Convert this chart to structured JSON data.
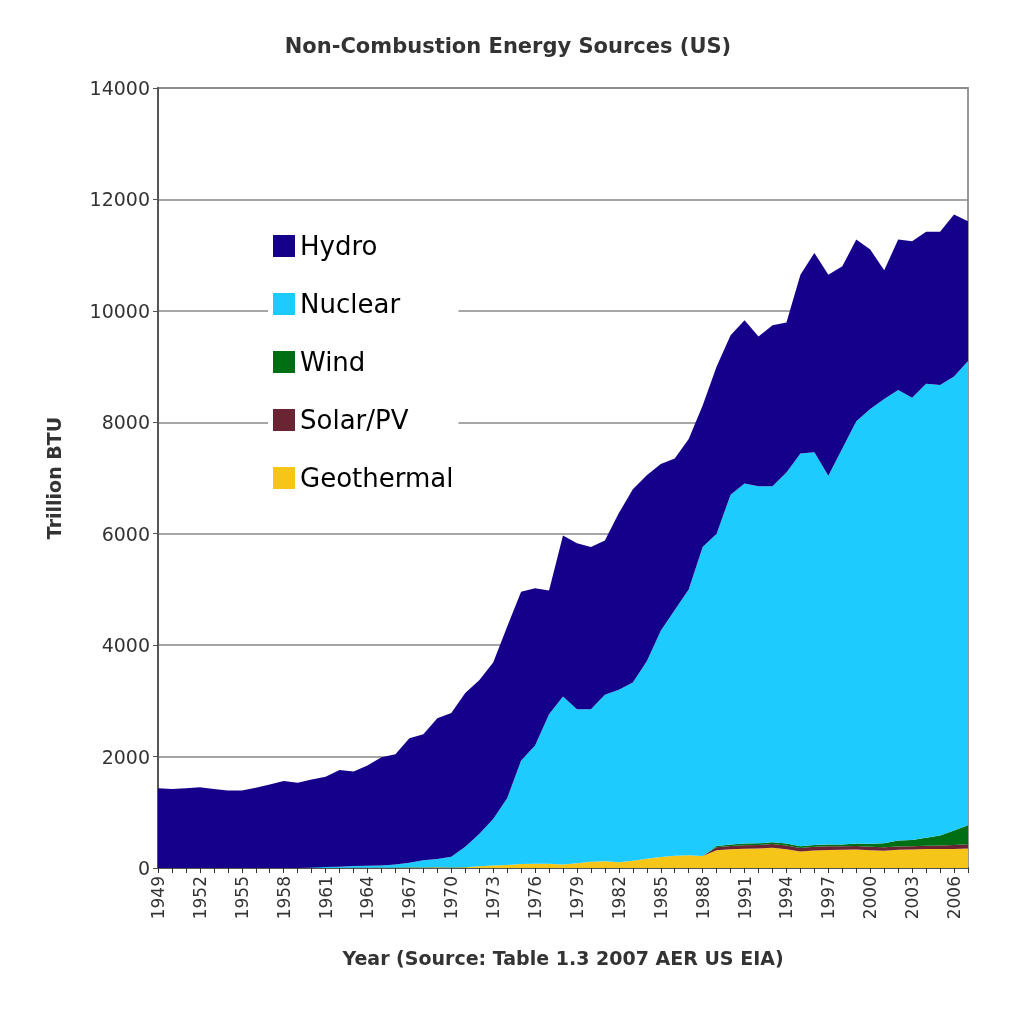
{
  "chart_data": {
    "type": "area",
    "title": "Non-Combustion Energy Sources (US)",
    "xlabel": "Year (Source: Table 1.3 2007 AER US EIA)",
    "ylabel": "Trillion BTU",
    "stacked": true,
    "grid": "y",
    "legend": "top left",
    "x": [
      1949,
      1950,
      1951,
      1952,
      1953,
      1954,
      1955,
      1956,
      1957,
      1958,
      1959,
      1960,
      1961,
      1962,
      1963,
      1964,
      1965,
      1966,
      1967,
      1968,
      1969,
      1970,
      1971,
      1972,
      1973,
      1974,
      1975,
      1976,
      1977,
      1978,
      1979,
      1980,
      1981,
      1982,
      1983,
      1984,
      1985,
      1986,
      1987,
      1988,
      1989,
      1990,
      1991,
      1992,
      1993,
      1994,
      1995,
      1996,
      1997,
      1998,
      1999,
      2000,
      2001,
      2002,
      2003,
      2004,
      2005,
      2006,
      2007
    ],
    "xlim": [
      1949,
      2007
    ],
    "xticks": [
      1949,
      {
        "value": 1950,
        "label": null
      },
      {
        "value": 1951,
        "label": null
      },
      1952,
      {
        "value": 1953,
        "label": null
      },
      {
        "value": 1954,
        "label": null
      },
      1955,
      {
        "value": 1956,
        "label": null
      },
      {
        "value": 1957,
        "label": null
      },
      1958,
      {
        "value": 1959,
        "label": null
      },
      {
        "value": 1960,
        "label": null
      },
      1961,
      {
        "value": 1962,
        "label": null
      },
      {
        "value": 1963,
        "label": null
      },
      1964,
      {
        "value": 1965,
        "label": null
      },
      {
        "value": 1966,
        "label": null
      },
      1967,
      {
        "value": 1968,
        "label": null
      },
      {
        "value": 1969,
        "label": null
      },
      1970,
      {
        "value": 1971,
        "label": null
      },
      {
        "value": 1972,
        "label": null
      },
      1973,
      {
        "value": 1974,
        "label": null
      },
      {
        "value": 1975,
        "label": null
      },
      1976,
      {
        "value": 1977,
        "label": null
      },
      {
        "value": 1978,
        "label": null
      },
      1979,
      {
        "value": 1980,
        "label": null
      },
      {
        "value": 1981,
        "label": null
      },
      1982,
      {
        "value": 1983,
        "label": null
      },
      {
        "value": 1984,
        "label": null
      },
      1985,
      {
        "value": 1986,
        "label": null
      },
      {
        "value": 1987,
        "label": null
      },
      1988,
      {
        "value": 1989,
        "label": null
      },
      {
        "value": 1990,
        "label": null
      },
      1991,
      {
        "value": 1992,
        "label": null
      },
      {
        "value": 1993,
        "label": null
      },
      1994,
      {
        "value": 1995,
        "label": null
      },
      {
        "value": 1996,
        "label": null
      },
      1997,
      {
        "value": 1998,
        "label": null
      },
      {
        "value": 1999,
        "label": null
      },
      2000,
      {
        "value": 2001,
        "label": null
      },
      {
        "value": 2002,
        "label": null
      },
      2003,
      {
        "value": 2004,
        "label": null
      },
      {
        "value": 2005,
        "label": null
      },
      2006,
      {
        "value": 2007,
        "label": null
      }
    ],
    "ylim": [
      0,
      14000
    ],
    "yticks": [
      0,
      2000,
      4000,
      6000,
      8000,
      10000,
      12000,
      14000
    ],
    "series": [
      {
        "name": "Geothermal",
        "color": "#f5c518",
        "values": [
          0,
          0,
          0,
          0,
          0,
          0,
          0,
          0,
          0,
          0,
          0,
          1,
          2,
          2,
          4,
          5,
          4,
          4,
          7,
          9,
          13,
          11,
          12,
          31,
          43,
          53,
          70,
          78,
          77,
          64,
          84,
          110,
          123,
          105,
          129,
          165,
          198,
          219,
          229,
          217,
          317,
          336,
          346,
          349,
          364,
          338,
          294,
          316,
          325,
          328,
          331,
          317,
          311,
          328,
          331,
          341,
          343,
          343,
          349
        ]
      },
      {
        "name": "Solar/PV",
        "color": "#6b2433",
        "values": [
          0,
          0,
          0,
          0,
          0,
          0,
          0,
          0,
          0,
          0,
          0,
          0,
          0,
          0,
          0,
          0,
          0,
          0,
          0,
          0,
          0,
          0,
          0,
          0,
          0,
          0,
          0,
          0,
          0,
          0,
          0,
          0,
          0,
          0,
          0,
          0,
          0,
          0,
          0,
          0,
          55,
          59,
          62,
          64,
          66,
          65,
          65,
          65,
          64,
          63,
          63,
          63,
          62,
          60,
          58,
          60,
          62,
          68,
          76
        ]
      },
      {
        "name": "Wind",
        "color": "#006e12",
        "values": [
          0,
          0,
          0,
          0,
          0,
          0,
          0,
          0,
          0,
          0,
          0,
          0,
          0,
          0,
          0,
          0,
          0,
          0,
          0,
          0,
          0,
          0,
          0,
          0,
          0,
          0,
          0,
          0,
          0,
          0,
          0,
          0,
          0,
          0,
          0,
          0,
          0,
          0,
          0,
          0,
          22,
          29,
          31,
          30,
          31,
          36,
          33,
          33,
          34,
          31,
          46,
          57,
          70,
          105,
          115,
          142,
          178,
          264,
          341
        ]
      },
      {
        "name": "Nuclear",
        "color": "#1ecbff",
        "values": [
          0,
          0,
          0,
          0,
          0,
          0,
          0,
          0,
          0,
          0,
          2,
          6,
          15,
          22,
          31,
          35,
          43,
          60,
          88,
          131,
          147,
          189,
          368,
          579,
          837,
          1197,
          1860,
          2122,
          2683,
          3016,
          2766,
          2740,
          2987,
          3095,
          3201,
          3545,
          4062,
          4411,
          4771,
          5543,
          5606,
          6276,
          6461,
          6407,
          6389,
          6661,
          7048,
          7046,
          6617,
          7108,
          7580,
          7803,
          7977,
          8087,
          7936,
          8147,
          8087,
          8145,
          8334
        ]
      },
      {
        "name": "Hydro",
        "color": "#14008a",
        "values": [
          1430,
          1420,
          1430,
          1450,
          1420,
          1390,
          1390,
          1440,
          1500,
          1560,
          1528,
          1583,
          1623,
          1736,
          1695,
          1800,
          1943,
          1976,
          2235,
          2260,
          2530,
          2580,
          2760,
          2760,
          2810,
          3080,
          3030,
          2820,
          2220,
          2890,
          2980,
          2910,
          2770,
          3170,
          3470,
          3340,
          2990,
          2720,
          2700,
          2540,
          3000,
          2860,
          2930,
          2690,
          2890,
          2690,
          3210,
          3580,
          3610,
          3270,
          3260,
          2860,
          2310,
          2700,
          2810,
          2730,
          2750,
          2910,
          2510
        ]
      }
    ]
  }
}
